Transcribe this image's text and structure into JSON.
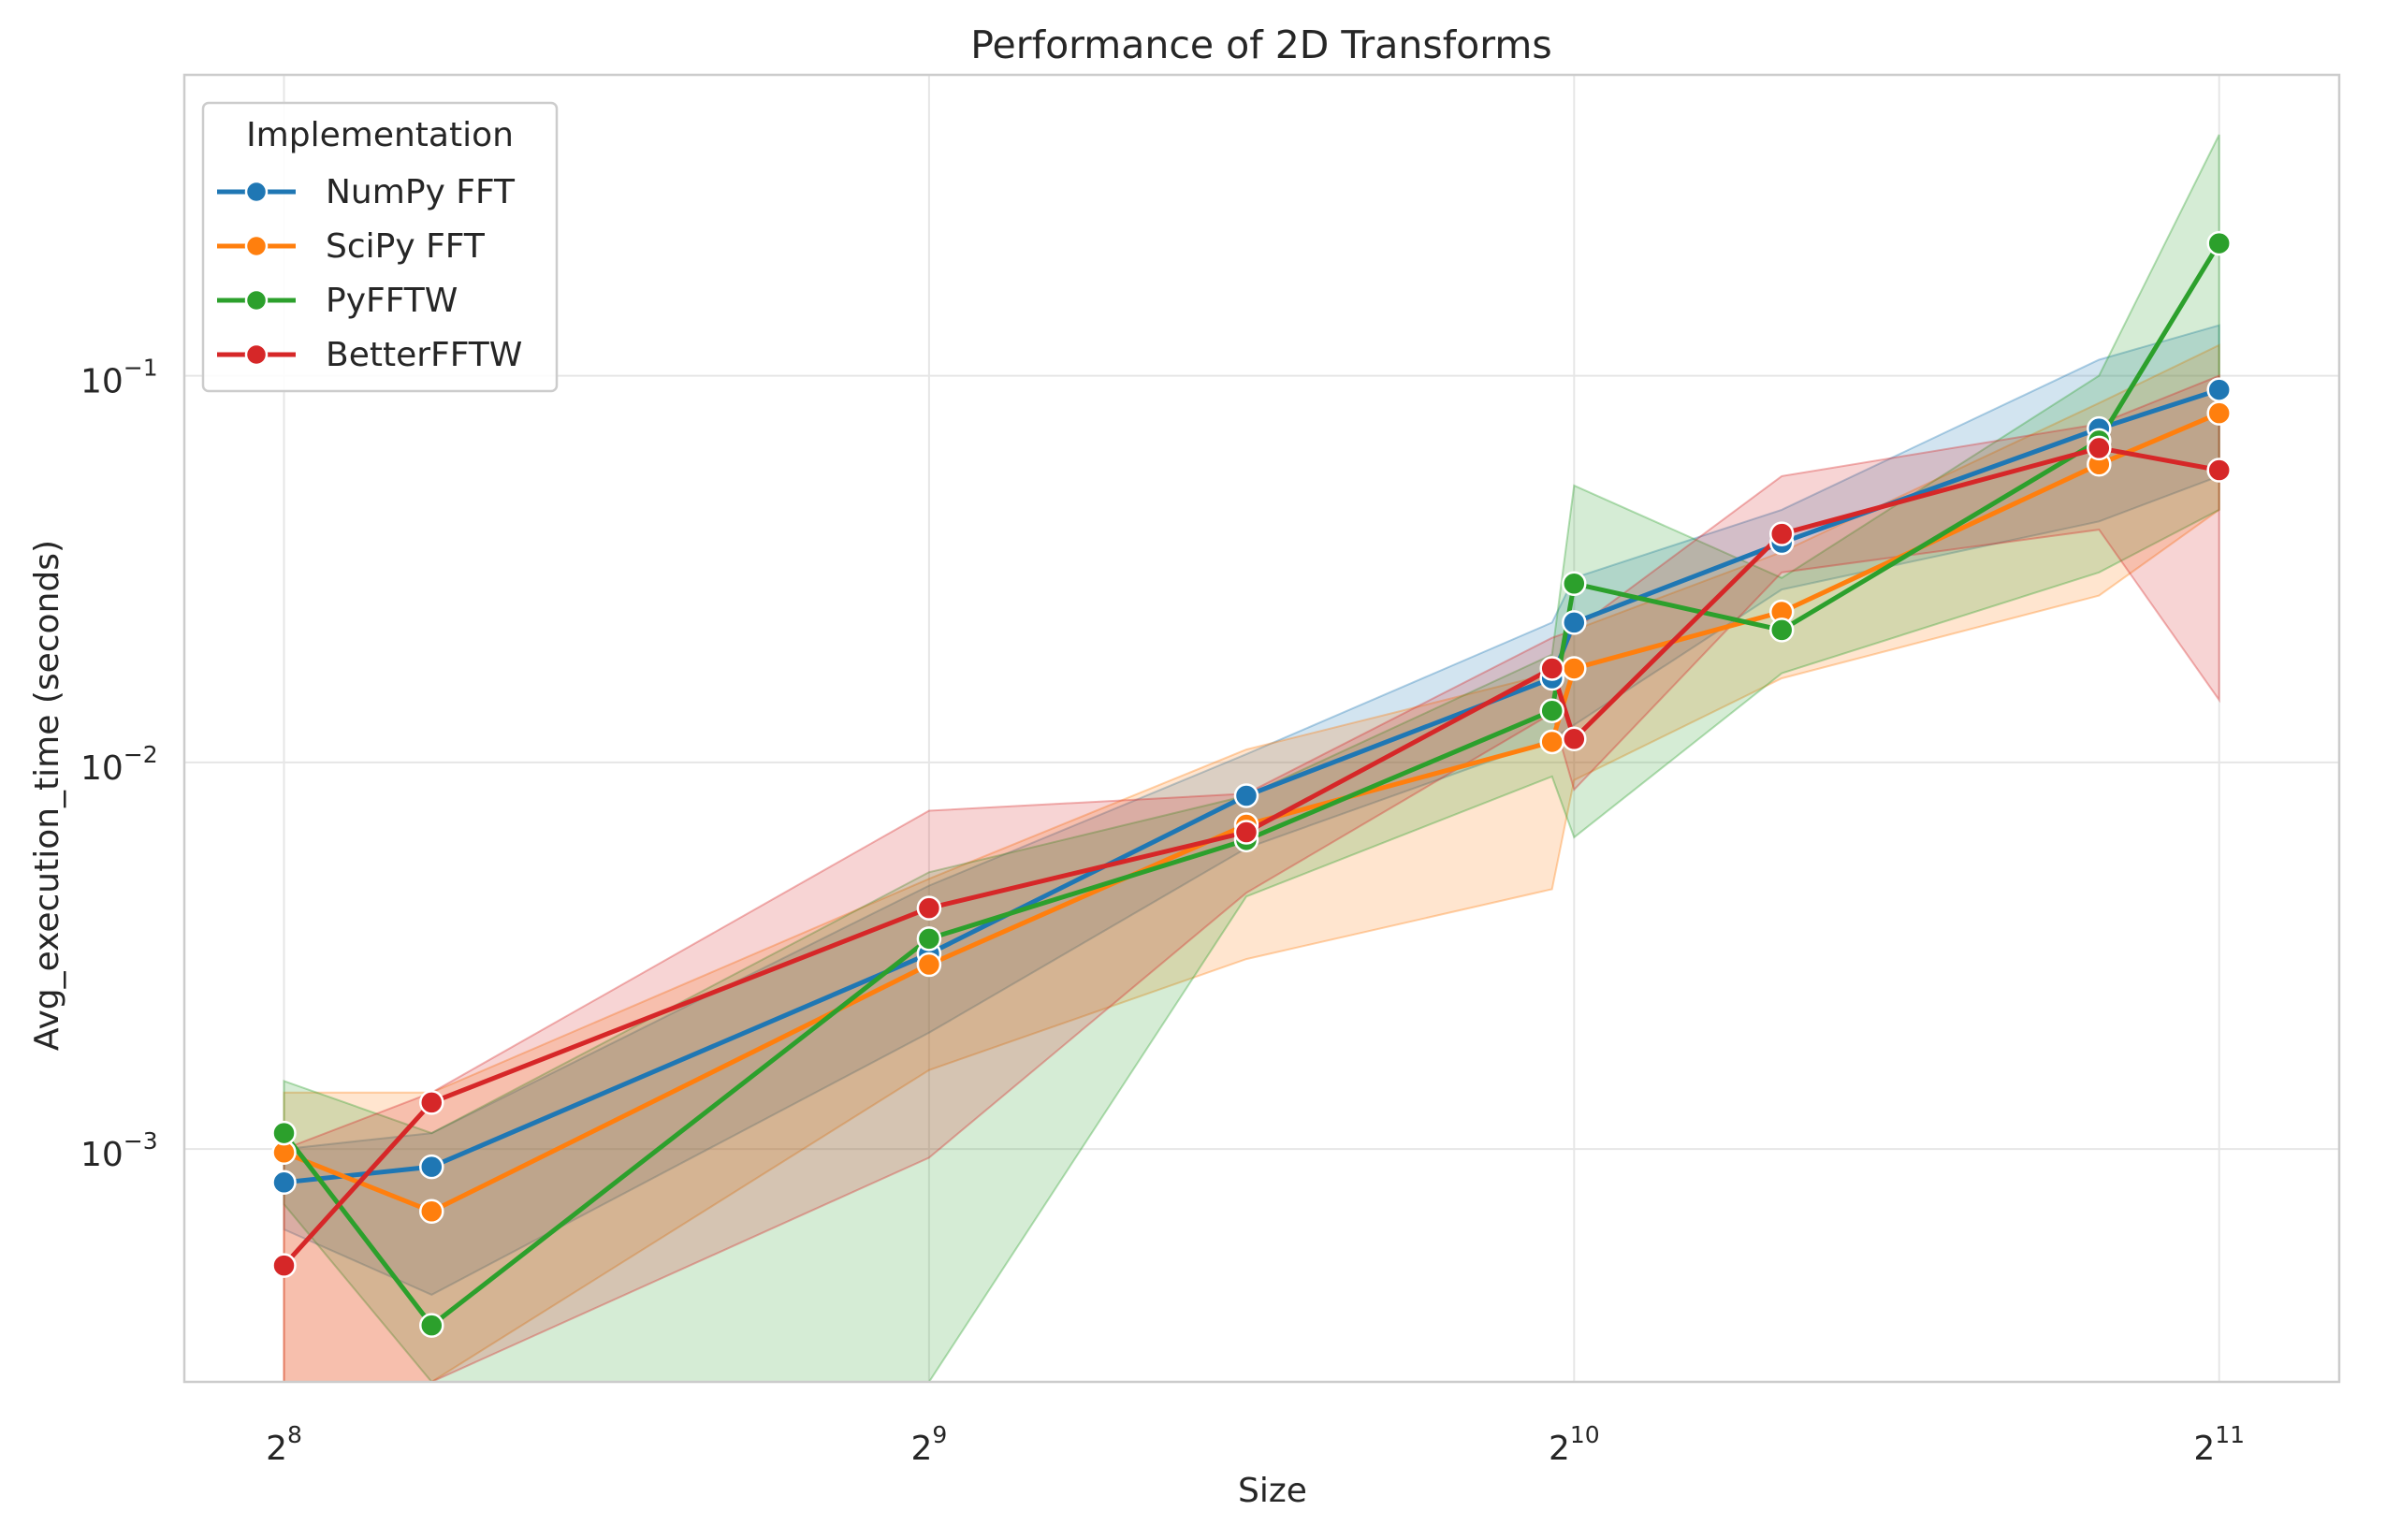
{
  "chart_data": {
    "type": "line",
    "title": "Performance of 2D Transforms",
    "xlabel": "Size",
    "ylabel": "Avg_execution_time (seconds)",
    "x_scale": "log2",
    "y_scale": "log10",
    "xlim": [
      230,
      2330
    ],
    "ylim": [
      0.00025,
      0.6
    ],
    "x_ticks": [
      {
        "value": 256,
        "base": "2",
        "exp": "8"
      },
      {
        "value": 512,
        "base": "2",
        "exp": "9"
      },
      {
        "value": 1024,
        "base": "2",
        "exp": "10"
      },
      {
        "value": 2048,
        "base": "2",
        "exp": "11"
      }
    ],
    "y_ticks": [
      {
        "value": 0.001,
        "base": "10",
        "exp": "−3"
      },
      {
        "value": 0.01,
        "base": "10",
        "exp": "−2"
      },
      {
        "value": 0.1,
        "base": "10",
        "exp": "−1"
      }
    ],
    "grid": true,
    "legend": {
      "title": "Implementation",
      "placement": "top-left"
    },
    "series": [
      {
        "name": "NumPy FFT",
        "color": "#1f77b4",
        "x": [
          256,
          300,
          512,
          720,
          1000,
          1024,
          1280,
          1800,
          2048
        ],
        "y": [
          0.00082,
          0.0009,
          0.0032,
          0.0082,
          0.0165,
          0.023,
          0.037,
          0.073,
          0.092
        ],
        "lower": [
          0.00062,
          0.00042,
          0.002,
          0.006,
          0.0115,
          0.0125,
          0.028,
          0.042,
          0.055
        ],
        "upper": [
          0.001,
          0.0011,
          0.0048,
          0.0105,
          0.023,
          0.03,
          0.045,
          0.11,
          0.135
        ]
      },
      {
        "name": "SciPy FFT",
        "color": "#ff7f0e",
        "x": [
          256,
          300,
          512,
          720,
          1000,
          1024,
          1280,
          1800,
          2048
        ],
        "y": [
          0.00098,
          0.00069,
          0.003,
          0.0069,
          0.0113,
          0.0175,
          0.0245,
          0.059,
          0.08
        ],
        "lower": [
          1e-05,
          1e-05,
          0.0016,
          0.0031,
          0.0047,
          0.009,
          0.0165,
          0.027,
          0.045
        ],
        "upper": [
          0.0014,
          0.0014,
          0.005,
          0.0108,
          0.017,
          0.022,
          0.035,
          0.085,
          0.12
        ]
      },
      {
        "name": "PyFFTW",
        "color": "#2ca02c",
        "x": [
          256,
          300,
          512,
          720,
          1000,
          1024,
          1280,
          1800,
          2048
        ],
        "y": [
          0.0011,
          0.00035,
          0.0035,
          0.0063,
          0.0136,
          0.029,
          0.022,
          0.068,
          0.22
        ],
        "lower": [
          0.00072,
          1e-05,
          1e-05,
          0.0045,
          0.0092,
          0.0064,
          0.017,
          0.031,
          0.045
        ],
        "upper": [
          0.0015,
          0.0011,
          0.0052,
          0.0082,
          0.019,
          0.052,
          0.03,
          0.1,
          0.42
        ]
      },
      {
        "name": "BetterFFTW",
        "color": "#d62728",
        "x": [
          256,
          300,
          512,
          720,
          1000,
          1024,
          1280,
          1800,
          2048
        ],
        "y": [
          0.0005,
          0.00132,
          0.0042,
          0.0066,
          0.0175,
          0.0115,
          0.039,
          0.065,
          0.057
        ],
        "lower": [
          1e-05,
          1e-05,
          0.00095,
          0.0046,
          0.0134,
          0.0085,
          0.031,
          0.04,
          0.0145
        ],
        "upper": [
          0.001,
          0.0014,
          0.0075,
          0.0083,
          0.021,
          0.022,
          0.055,
          0.075,
          0.1
        ]
      }
    ]
  }
}
